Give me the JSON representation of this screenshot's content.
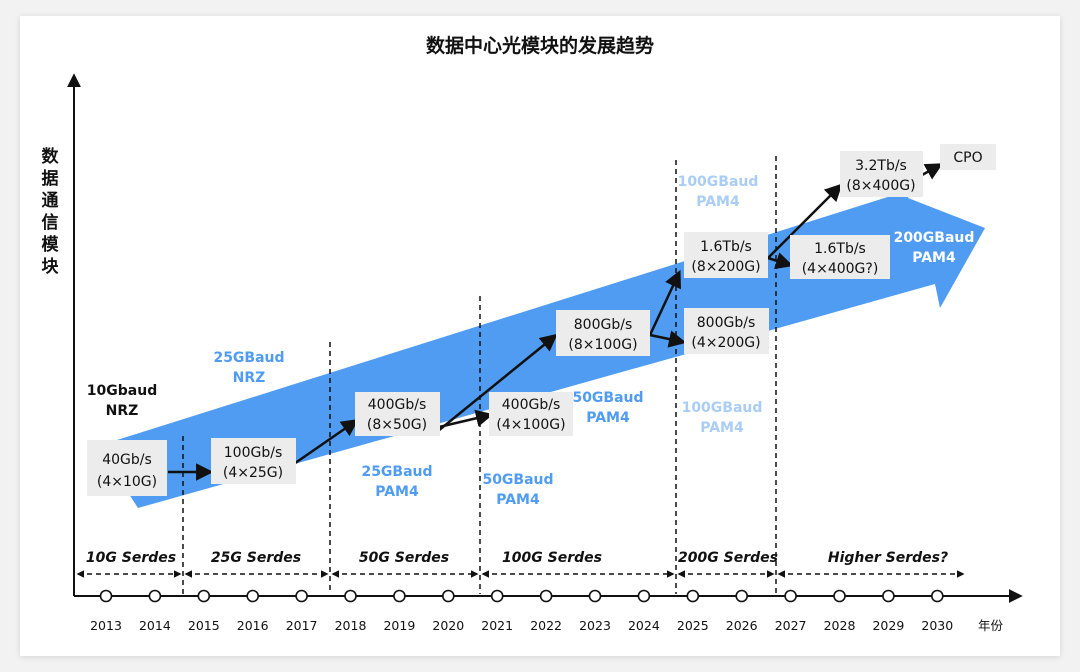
{
  "title": "数据中心光模块的发展趋势",
  "y_axis_label": [
    "数",
    "据",
    "通",
    "信",
    "模",
    "块"
  ],
  "x_axis_unit": "年份",
  "years": [
    "2013",
    "2014",
    "2015",
    "2016",
    "2017",
    "2018",
    "2019",
    "2020",
    "2021",
    "2022",
    "2023",
    "2024",
    "2025",
    "2026",
    "2027",
    "2028",
    "2029",
    "2030"
  ],
  "serdes_segments": [
    "10G Serdes",
    "25G Serdes",
    "50G Serdes",
    "100G Serdes",
    "200G Serdes",
    "Higher Serdes?"
  ],
  "modules": [
    {
      "rate": "40Gb/s",
      "config": "(4×10G)"
    },
    {
      "rate": "100Gb/s",
      "config": "(4×25G)"
    },
    {
      "rate": "400Gb/s",
      "config": "(8×50G)"
    },
    {
      "rate": "400Gb/s",
      "config": "(4×100G)"
    },
    {
      "rate": "800Gb/s",
      "config": "(8×100G)"
    },
    {
      "rate": "800Gb/s",
      "config": "(4×200G)"
    },
    {
      "rate": "1.6Tb/s",
      "config": "(8×200G)"
    },
    {
      "rate": "1.6Tb/s",
      "config": "(4×400G?)"
    },
    {
      "rate": "3.2Tb/s",
      "config": "(8×400G)"
    },
    {
      "rate": "CPO",
      "config": ""
    }
  ],
  "baud_labels": [
    {
      "line1": "10Gbaud",
      "line2": "NRZ"
    },
    {
      "line1": "25GBaud",
      "line2": "NRZ"
    },
    {
      "line1": "25GBaud",
      "line2": "PAM4"
    },
    {
      "line1": "50GBaud",
      "line2": "PAM4"
    },
    {
      "line1": "50GBaud",
      "line2": "PAM4"
    },
    {
      "line1": "100GBaud",
      "line2": "PAM4"
    },
    {
      "line1": "100GBaud",
      "line2": "PAM4"
    },
    {
      "line1": "200GBaud",
      "line2": "PAM4"
    }
  ],
  "colors": {
    "arrow_band": "#4f9cf2",
    "baud_blue": "#4f9cf2",
    "baud_light": "#a9cdf5",
    "baud_dark": "#111111",
    "baud_white": "#ffffff",
    "box_fill": "#ececec"
  }
}
